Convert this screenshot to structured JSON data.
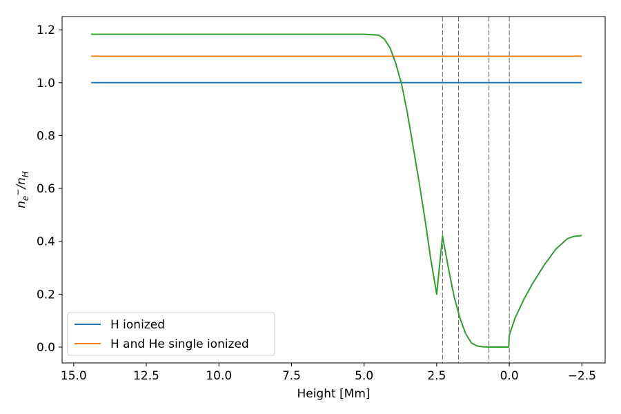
{
  "chart_data": {
    "type": "line",
    "xlabel": "Height [Mm]",
    "ylabel_main": "n",
    "ylabel_sub1": "e",
    "ylabel_sup1": "−",
    "ylabel_slash": "/n",
    "ylabel_sub2": "H",
    "xlim": [
      15.4,
      -3.3
    ],
    "ylim": [
      -0.06,
      1.25
    ],
    "x_reversed": true,
    "grid": false,
    "legend_position": "lower-left",
    "x_ticks": [
      15.0,
      12.5,
      10.0,
      7.5,
      5.0,
      2.5,
      0.0,
      -2.5
    ],
    "x_tick_labels": [
      "15.0",
      "12.5",
      "10.0",
      "7.5",
      "5.0",
      "2.5",
      "0.0",
      "−2.5"
    ],
    "y_ticks": [
      0.0,
      0.2,
      0.4,
      0.6,
      0.8,
      1.0,
      1.2
    ],
    "y_tick_labels": [
      "0.0",
      "0.2",
      "0.4",
      "0.6",
      "0.8",
      "1.0",
      "1.2"
    ],
    "vlines": [
      2.3,
      1.75,
      0.7,
      0.0
    ],
    "series": [
      {
        "name": "H ionized",
        "color": "#1f77b4",
        "x": [
          14.4,
          -2.5
        ],
        "y": [
          1.0,
          1.0
        ]
      },
      {
        "name": "H and He single ionized",
        "color": "#ff7f0e",
        "x": [
          14.4,
          -2.5
        ],
        "y": [
          1.1,
          1.1
        ]
      },
      {
        "name": "",
        "color": "#2ca02c",
        "x": [
          14.4,
          10.0,
          6.0,
          5.0,
          4.5,
          4.3,
          4.1,
          3.9,
          3.7,
          3.5,
          3.3,
          3.1,
          2.9,
          2.7,
          2.5,
          2.3,
          2.1,
          1.9,
          1.7,
          1.5,
          1.3,
          1.1,
          0.9,
          0.7,
          0.5,
          0.3,
          0.1,
          0.02,
          0.0,
          -0.2,
          -0.5,
          -0.8,
          -1.2,
          -1.6,
          -2.0,
          -2.2,
          -2.5
        ],
        "y": [
          1.183,
          1.183,
          1.183,
          1.183,
          1.18,
          1.165,
          1.13,
          1.07,
          0.99,
          0.88,
          0.75,
          0.62,
          0.48,
          0.33,
          0.2,
          0.42,
          0.3,
          0.19,
          0.11,
          0.05,
          0.015,
          0.004,
          0.001,
          0.0,
          0.0,
          0.0,
          0.0,
          0.0,
          0.045,
          0.11,
          0.18,
          0.24,
          0.31,
          0.37,
          0.41,
          0.418,
          0.422
        ]
      }
    ]
  }
}
